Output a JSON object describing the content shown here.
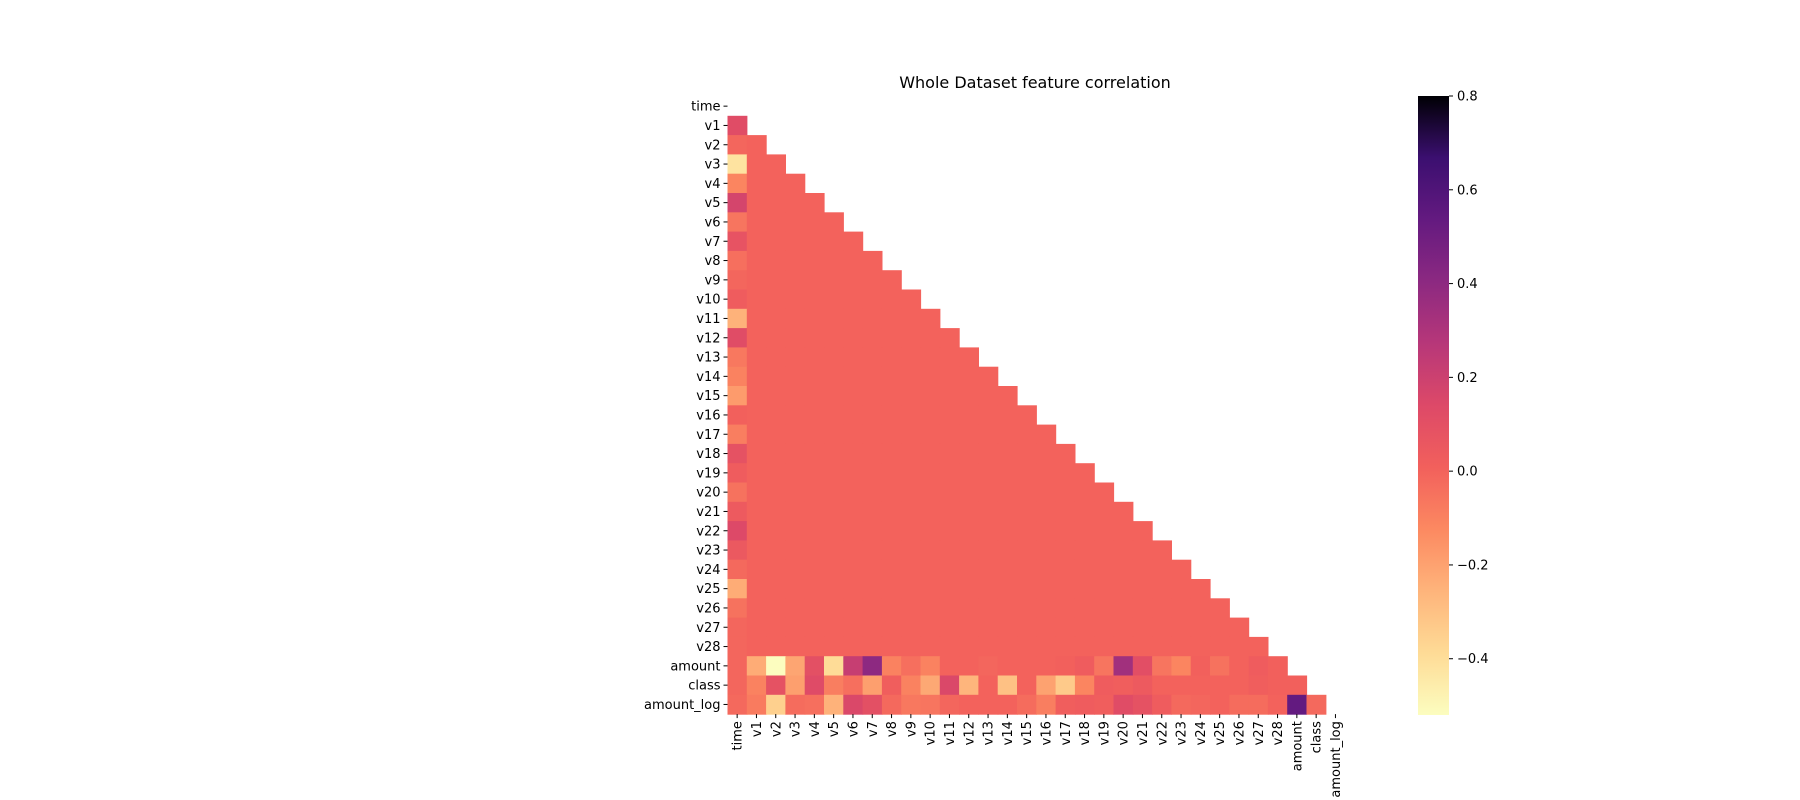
{
  "chart_data": {
    "type": "heatmap",
    "title": "Whole Dataset feature correlation",
    "mask": "upper-triangle-including-diagonal",
    "colormap": "magma_r",
    "vmin": -0.52,
    "vmax": 0.8,
    "colorbar_ticks": [
      "0.8",
      "0.6",
      "0.4",
      "0.2",
      "0.0",
      "−0.2",
      "−0.4"
    ],
    "colorbar_tick_values": [
      0.8,
      0.6,
      0.4,
      0.2,
      0.0,
      -0.2,
      -0.4
    ],
    "labels": [
      "time",
      "v1",
      "v2",
      "v3",
      "v4",
      "v5",
      "v6",
      "v7",
      "v8",
      "v9",
      "v10",
      "v11",
      "v12",
      "v13",
      "v14",
      "v15",
      "v16",
      "v17",
      "v18",
      "v19",
      "v20",
      "v21",
      "v22",
      "v23",
      "v24",
      "v25",
      "v26",
      "v27",
      "v28",
      "amount",
      "class",
      "amount_log"
    ],
    "lower_triangle": [
      [],
      [
        0.12
      ],
      [
        -0.01,
        0.0
      ],
      [
        -0.42,
        0.0,
        0.0
      ],
      [
        -0.11,
        0.0,
        0.0,
        0.0
      ],
      [
        0.17,
        0.0,
        0.0,
        0.0,
        0.0
      ],
      [
        -0.06,
        0.0,
        0.0,
        0.0,
        0.0,
        0.0
      ],
      [
        0.08,
        0.0,
        0.0,
        0.0,
        0.0,
        0.0,
        0.0
      ],
      [
        -0.04,
        0.0,
        0.0,
        0.0,
        0.0,
        0.0,
        0.0,
        0.0
      ],
      [
        -0.01,
        0.0,
        0.0,
        0.0,
        0.0,
        0.0,
        0.0,
        0.0,
        0.0
      ],
      [
        0.03,
        0.0,
        0.0,
        0.0,
        0.0,
        0.0,
        0.0,
        0.0,
        0.0,
        0.0
      ],
      [
        -0.25,
        0.0,
        0.0,
        0.0,
        0.0,
        0.0,
        0.0,
        0.0,
        0.0,
        0.0,
        0.0
      ],
      [
        0.12,
        0.0,
        0.0,
        0.0,
        0.0,
        0.0,
        0.0,
        0.0,
        0.0,
        0.0,
        0.0,
        0.0
      ],
      [
        -0.07,
        0.0,
        0.0,
        0.0,
        0.0,
        0.0,
        0.0,
        0.0,
        0.0,
        0.0,
        0.0,
        0.0,
        0.0
      ],
      [
        -0.1,
        0.0,
        0.0,
        0.0,
        0.0,
        0.0,
        0.0,
        0.0,
        0.0,
        0.0,
        0.0,
        0.0,
        0.0,
        0.0
      ],
      [
        -0.18,
        0.0,
        0.0,
        0.0,
        0.0,
        0.0,
        0.0,
        0.0,
        0.0,
        0.0,
        0.0,
        0.0,
        0.0,
        0.0,
        0.0
      ],
      [
        0.01,
        0.0,
        0.0,
        0.0,
        0.0,
        0.0,
        0.0,
        0.0,
        0.0,
        0.0,
        0.0,
        0.0,
        0.0,
        0.0,
        0.0,
        0.0
      ],
      [
        -0.09,
        0.0,
        0.0,
        0.0,
        0.0,
        0.0,
        0.0,
        0.0,
        0.0,
        0.0,
        0.0,
        0.0,
        0.0,
        0.0,
        0.0,
        0.0,
        0.0
      ],
      [
        0.09,
        0.0,
        0.0,
        0.0,
        0.0,
        0.0,
        0.0,
        0.0,
        0.0,
        0.0,
        0.0,
        0.0,
        0.0,
        0.0,
        0.0,
        0.0,
        0.0,
        0.0
      ],
      [
        0.03,
        0.0,
        0.0,
        0.0,
        0.0,
        0.0,
        0.0,
        0.0,
        0.0,
        0.0,
        0.0,
        0.0,
        0.0,
        0.0,
        0.0,
        0.0,
        0.0,
        0.0,
        0.0
      ],
      [
        -0.05,
        0.0,
        0.0,
        0.0,
        0.0,
        0.0,
        0.0,
        0.0,
        0.0,
        0.0,
        0.0,
        0.0,
        0.0,
        0.0,
        0.0,
        0.0,
        0.0,
        0.0,
        0.0,
        0.0
      ],
      [
        0.04,
        0.0,
        0.0,
        0.0,
        0.0,
        0.0,
        0.0,
        0.0,
        0.0,
        0.0,
        0.0,
        0.0,
        0.0,
        0.0,
        0.0,
        0.0,
        0.0,
        0.0,
        0.0,
        0.0,
        0.0
      ],
      [
        0.14,
        0.0,
        0.0,
        0.0,
        0.0,
        0.0,
        0.0,
        0.0,
        0.0,
        0.0,
        0.0,
        0.0,
        0.0,
        0.0,
        0.0,
        0.0,
        0.0,
        0.0,
        0.0,
        0.0,
        0.0,
        0.0
      ],
      [
        0.05,
        0.0,
        0.0,
        0.0,
        0.0,
        0.0,
        0.0,
        0.0,
        0.0,
        0.0,
        0.0,
        0.0,
        0.0,
        0.0,
        0.0,
        0.0,
        0.0,
        0.0,
        0.0,
        0.0,
        0.0,
        0.0,
        0.0
      ],
      [
        -0.02,
        0.0,
        0.0,
        0.0,
        0.0,
        0.0,
        0.0,
        0.0,
        0.0,
        0.0,
        0.0,
        0.0,
        0.0,
        0.0,
        0.0,
        0.0,
        0.0,
        0.0,
        0.0,
        0.0,
        0.0,
        0.0,
        0.0,
        0.0
      ],
      [
        -0.23,
        0.0,
        0.0,
        0.0,
        0.0,
        0.0,
        0.0,
        0.0,
        0.0,
        0.0,
        0.0,
        0.0,
        0.0,
        0.0,
        0.0,
        0.0,
        0.0,
        0.0,
        0.0,
        0.0,
        0.0,
        0.0,
        0.0,
        0.0,
        0.0
      ],
      [
        -0.05,
        0.0,
        0.0,
        0.0,
        0.0,
        0.0,
        0.0,
        0.0,
        0.0,
        0.0,
        0.0,
        0.0,
        0.0,
        0.0,
        0.0,
        0.0,
        0.0,
        0.0,
        0.0,
        0.0,
        0.0,
        0.0,
        0.0,
        0.0,
        0.0,
        0.0
      ],
      [
        -0.01,
        0.0,
        0.0,
        0.0,
        0.0,
        0.0,
        0.0,
        0.0,
        0.0,
        0.0,
        0.0,
        0.0,
        0.0,
        0.0,
        0.0,
        0.0,
        0.0,
        0.0,
        0.0,
        0.0,
        0.0,
        0.0,
        0.0,
        0.0,
        0.0,
        0.0,
        0.0
      ],
      [
        -0.01,
        0.0,
        0.0,
        0.0,
        0.0,
        0.0,
        0.0,
        0.0,
        0.0,
        0.0,
        0.0,
        0.0,
        0.0,
        0.0,
        0.0,
        0.0,
        0.0,
        0.0,
        0.0,
        0.0,
        0.0,
        0.0,
        0.0,
        0.0,
        0.0,
        0.0,
        0.0,
        0.0
      ],
      [
        -0.01,
        -0.23,
        -0.53,
        -0.21,
        0.1,
        -0.39,
        0.22,
        0.4,
        -0.1,
        -0.04,
        -0.1,
        0.0,
        0.0,
        -0.01,
        0.0,
        0.0,
        0.0,
        0.01,
        0.03,
        -0.06,
        0.34,
        0.11,
        -0.06,
        -0.11,
        0.01,
        -0.05,
        0.0,
        0.03,
        0.01
      ],
      [
        -0.01,
        -0.1,
        0.09,
        -0.19,
        0.13,
        -0.09,
        -0.04,
        -0.19,
        0.02,
        -0.1,
        -0.22,
        0.15,
        -0.26,
        0.0,
        -0.3,
        0.0,
        -0.2,
        -0.33,
        -0.11,
        0.03,
        0.02,
        0.04,
        0.0,
        0.0,
        0.0,
        0.0,
        0.0,
        0.02,
        0.01,
        0.01
      ],
      [
        -0.02,
        -0.08,
        -0.35,
        -0.03,
        -0.04,
        -0.25,
        0.15,
        0.1,
        -0.02,
        -0.07,
        -0.06,
        -0.01,
        0.0,
        0.0,
        0.0,
        -0.03,
        -0.09,
        0.02,
        0.03,
        0.02,
        0.12,
        0.09,
        0.03,
        -0.02,
        -0.01,
        0.0,
        -0.03,
        -0.03,
        0.0,
        0.54,
        -0.02
      ]
    ]
  }
}
